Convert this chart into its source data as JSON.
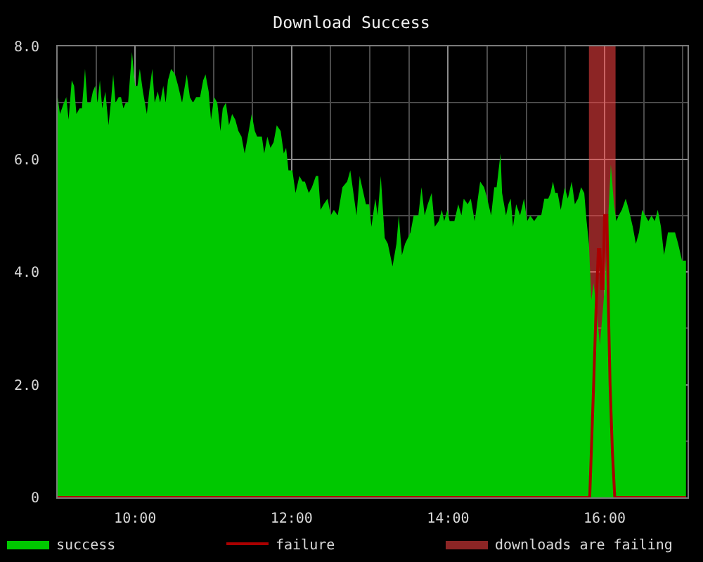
{
  "chart_data": {
    "type": "area",
    "title": "Download Success",
    "x": [
      9.01,
      9.04,
      9.09,
      9.12,
      9.15,
      9.19,
      9.22,
      9.25,
      9.29,
      9.32,
      9.36,
      9.39,
      9.43,
      9.46,
      9.49,
      9.52,
      9.55,
      9.58,
      9.62,
      9.66,
      9.69,
      9.72,
      9.75,
      9.79,
      9.82,
      9.85,
      9.88,
      9.91,
      9.96,
      10.0,
      10.03,
      10.06,
      10.1,
      10.15,
      10.18,
      10.22,
      10.25,
      10.29,
      10.32,
      10.36,
      10.39,
      10.42,
      10.46,
      10.51,
      10.55,
      10.6,
      10.66,
      10.7,
      10.74,
      10.78,
      10.83,
      10.87,
      10.9,
      10.94,
      10.97,
      11.01,
      11.05,
      11.09,
      11.12,
      11.16,
      11.2,
      11.24,
      11.28,
      11.32,
      11.36,
      11.4,
      11.44,
      11.49,
      11.53,
      11.56,
      11.62,
      11.65,
      11.69,
      11.73,
      11.77,
      11.81,
      11.86,
      11.9,
      11.93,
      11.96,
      12.01,
      12.05,
      12.1,
      12.14,
      12.17,
      12.22,
      12.26,
      12.31,
      12.34,
      12.37,
      12.41,
      12.46,
      12.5,
      12.54,
      12.59,
      12.65,
      12.71,
      12.75,
      12.83,
      12.87,
      12.95,
      12.99,
      13.02,
      13.07,
      13.1,
      13.14,
      13.19,
      13.23,
      13.29,
      13.34,
      13.37,
      13.41,
      13.45,
      13.52,
      13.56,
      13.62,
      13.66,
      13.7,
      13.74,
      13.79,
      13.83,
      13.88,
      13.92,
      13.95,
      13.99,
      14.02,
      14.08,
      14.13,
      14.17,
      14.2,
      14.25,
      14.29,
      14.34,
      14.38,
      14.41,
      14.46,
      14.5,
      14.55,
      14.59,
      14.62,
      14.67,
      14.69,
      14.74,
      14.77,
      14.8,
      14.83,
      14.87,
      14.92,
      14.97,
      15.01,
      15.05,
      15.1,
      15.15,
      15.19,
      15.23,
      15.28,
      15.31,
      15.34,
      15.37,
      15.4,
      15.44,
      15.49,
      15.53,
      15.58,
      15.62,
      15.66,
      15.7,
      15.74,
      15.77,
      15.8,
      15.83,
      15.86,
      15.9,
      15.94,
      15.97,
      16.0,
      16.08,
      16.12,
      16.15,
      16.18,
      16.22,
      16.27,
      16.31,
      16.36,
      16.4,
      16.44,
      16.48,
      16.52,
      16.56,
      16.6,
      16.64,
      16.68,
      16.72,
      16.76,
      16.81,
      16.85,
      16.9,
      16.94,
      16.99,
      17.04
    ],
    "series": [
      {
        "name": "success",
        "color": "#00c800",
        "values": [
          7.1,
          6.8,
          7.0,
          7.1,
          6.7,
          7.4,
          7.3,
          6.8,
          6.9,
          6.9,
          7.6,
          7.0,
          7.0,
          7.2,
          7.3,
          7.0,
          7.4,
          6.9,
          7.2,
          6.6,
          7.0,
          7.5,
          7.0,
          7.1,
          7.1,
          6.9,
          7.0,
          7.0,
          7.9,
          7.3,
          7.3,
          7.6,
          7.2,
          6.8,
          7.2,
          7.6,
          7.0,
          7.2,
          7.0,
          7.3,
          7.0,
          7.4,
          7.6,
          7.5,
          7.3,
          7.0,
          7.5,
          7.1,
          7.0,
          7.1,
          7.1,
          7.4,
          7.5,
          7.2,
          6.7,
          7.1,
          7.0,
          6.5,
          6.9,
          7.0,
          6.6,
          6.8,
          6.7,
          6.5,
          6.4,
          6.1,
          6.4,
          6.8,
          6.5,
          6.4,
          6.4,
          6.1,
          6.4,
          6.2,
          6.3,
          6.6,
          6.5,
          6.1,
          6.2,
          5.8,
          5.8,
          5.4,
          5.7,
          5.6,
          5.6,
          5.4,
          5.5,
          5.7,
          5.7,
          5.1,
          5.2,
          5.3,
          5.0,
          5.1,
          5.0,
          5.5,
          5.6,
          5.8,
          5.0,
          5.7,
          5.2,
          5.2,
          4.8,
          5.3,
          5.0,
          5.7,
          4.6,
          4.5,
          4.1,
          4.5,
          5.0,
          4.3,
          4.5,
          4.7,
          5.0,
          5.0,
          5.5,
          5.0,
          5.2,
          5.4,
          4.8,
          4.9,
          5.1,
          4.9,
          5.1,
          4.9,
          4.9,
          5.2,
          5.0,
          5.3,
          5.2,
          5.3,
          4.9,
          5.3,
          5.6,
          5.5,
          5.3,
          5.0,
          5.5,
          5.5,
          6.1,
          5.4,
          5.0,
          5.2,
          5.3,
          4.8,
          5.2,
          5.0,
          5.3,
          4.9,
          5.0,
          4.9,
          5.0,
          5.0,
          5.3,
          5.3,
          5.4,
          5.6,
          5.4,
          5.4,
          5.1,
          5.5,
          5.3,
          5.6,
          5.2,
          5.3,
          5.5,
          5.4,
          4.9,
          4.5,
          3.5,
          3.8,
          3.3,
          2.7,
          3.2,
          3.7,
          5.9,
          5.2,
          4.9,
          5.0,
          5.1,
          5.3,
          5.1,
          4.8,
          4.5,
          4.7,
          5.1,
          5.0,
          4.9,
          5.0,
          4.9,
          5.1,
          4.8,
          4.3,
          4.7,
          4.7,
          4.7,
          4.5,
          4.2,
          4.2
        ]
      },
      {
        "name": "failure",
        "type": "line",
        "color": "#aa0000",
        "x": [
          9.01,
          15.81,
          15.83,
          15.86,
          15.89,
          15.92,
          15.94,
          15.96,
          15.98,
          16.0,
          16.03,
          16.05,
          16.07,
          16.1,
          16.13,
          17.04
        ],
        "values": [
          0,
          0,
          0.8,
          2.0,
          3.3,
          4.4,
          4.4,
          3.7,
          3.7,
          5.0,
          5.0,
          3.3,
          2.0,
          0.8,
          0,
          0
        ]
      }
    ],
    "bands": [
      {
        "axis": "x",
        "from": 15.8,
        "to": 16.14,
        "label": "downloads are failing",
        "color": "#ff4444"
      }
    ],
    "xlim": [
      9.01,
      17.06
    ],
    "xticks": [
      {
        "value": 9.5,
        "label": null
      },
      {
        "value": 10,
        "label": "10:00"
      },
      {
        "value": 10.5,
        "label": null
      },
      {
        "value": 11,
        "label": null
      },
      {
        "value": 11.5,
        "label": null
      },
      {
        "value": 12,
        "label": "12:00"
      },
      {
        "value": 12.5,
        "label": null
      },
      {
        "value": 13,
        "label": null
      },
      {
        "value": 13.5,
        "label": null
      },
      {
        "value": 14,
        "label": "14:00"
      },
      {
        "value": 14.5,
        "label": null
      },
      {
        "value": 15,
        "label": null
      },
      {
        "value": 15.5,
        "label": null
      },
      {
        "value": 16,
        "label": "16:00"
      },
      {
        "value": 16.5,
        "label": null
      },
      {
        "value": 17,
        "label": null
      }
    ],
    "ylim": [
      0,
      8
    ],
    "yticks": [
      0,
      {
        "value": 1,
        "label": null
      },
      {
        "value": 2,
        "label": "2.0"
      },
      {
        "value": 3,
        "label": null
      },
      {
        "value": 4,
        "label": "4.0"
      },
      {
        "value": 5,
        "label": null
      },
      {
        "value": 6,
        "label": "6.0"
      },
      {
        "value": 7,
        "label": null
      },
      {
        "value": 8,
        "label": "8.0"
      }
    ],
    "grid": true,
    "legend": "bottom"
  }
}
